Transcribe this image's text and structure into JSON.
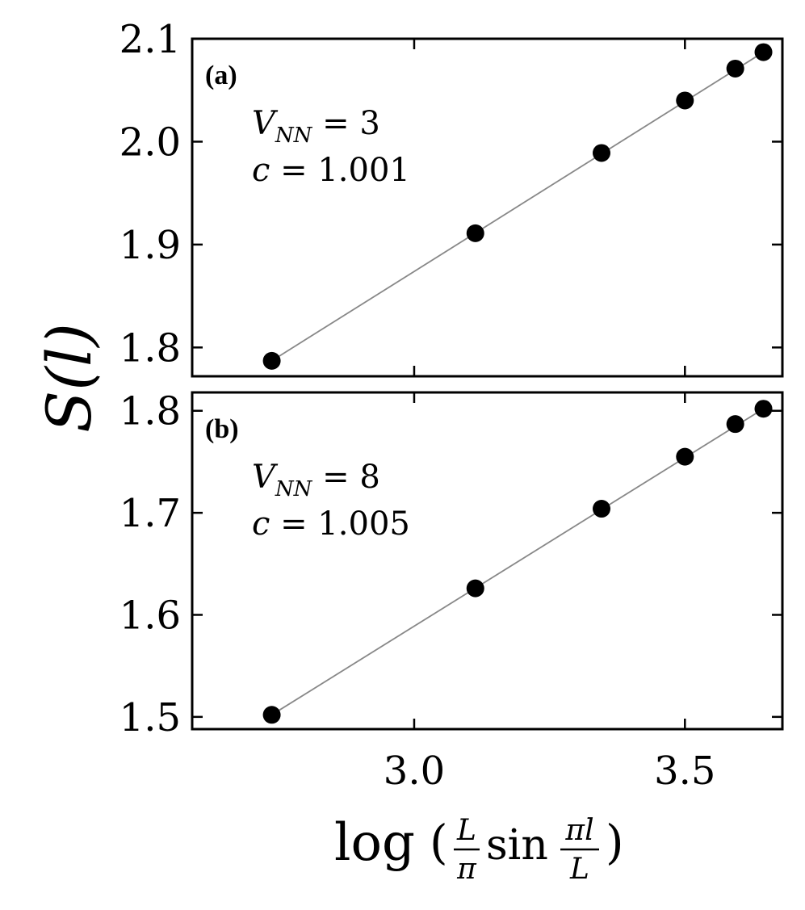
{
  "chart_data": [
    {
      "type": "scatter",
      "panel_label": "(a)",
      "annotation": {
        "symbol_sub": "NN",
        "v_value": "3",
        "c_value": "1.001"
      },
      "x": [
        2.737,
        3.113,
        3.346,
        3.5,
        3.593,
        3.645
      ],
      "series": [
        {
          "marker": "filled-circle",
          "values": [
            1.787,
            1.911,
            1.989,
            2.04,
            2.071,
            2.087
          ]
        }
      ],
      "fit_line": {
        "x": [
          2.737,
          3.645
        ],
        "y": [
          1.787,
          2.087
        ]
      },
      "xlim": [
        2.59,
        3.68
      ],
      "ylim": [
        1.772,
        2.1
      ],
      "yticks": [
        1.8,
        1.9,
        2.0,
        2.1
      ],
      "ytick_labels": [
        "1.8",
        "1.9",
        "2.0",
        "2.1"
      ],
      "xticks": [
        3.0,
        3.5
      ],
      "xtick_labels": [
        "",
        ""
      ],
      "colors": {
        "markers": "#000000",
        "fit": "#888888"
      }
    },
    {
      "type": "scatter",
      "panel_label": "(b)",
      "annotation": {
        "symbol_sub": "NN",
        "v_value": "8",
        "c_value": "1.005"
      },
      "x": [
        2.737,
        3.113,
        3.346,
        3.5,
        3.593,
        3.645
      ],
      "series": [
        {
          "marker": "filled-circle",
          "values": [
            1.502,
            1.626,
            1.704,
            1.755,
            1.787,
            1.802
          ]
        }
      ],
      "fit_line": {
        "x": [
          2.737,
          3.645
        ],
        "y": [
          1.502,
          1.802
        ]
      },
      "xlim": [
        2.59,
        3.68
      ],
      "ylim": [
        1.488,
        1.818
      ],
      "yticks": [
        1.5,
        1.6,
        1.7,
        1.8
      ],
      "ytick_labels": [
        "1.5",
        "1.6",
        "1.7",
        "1.8"
      ],
      "xticks": [
        3.0,
        3.5
      ],
      "xtick_labels": [
        "3.0",
        "3.5"
      ],
      "colors": {
        "markers": "#000000",
        "fit": "#888888"
      }
    }
  ]
}
